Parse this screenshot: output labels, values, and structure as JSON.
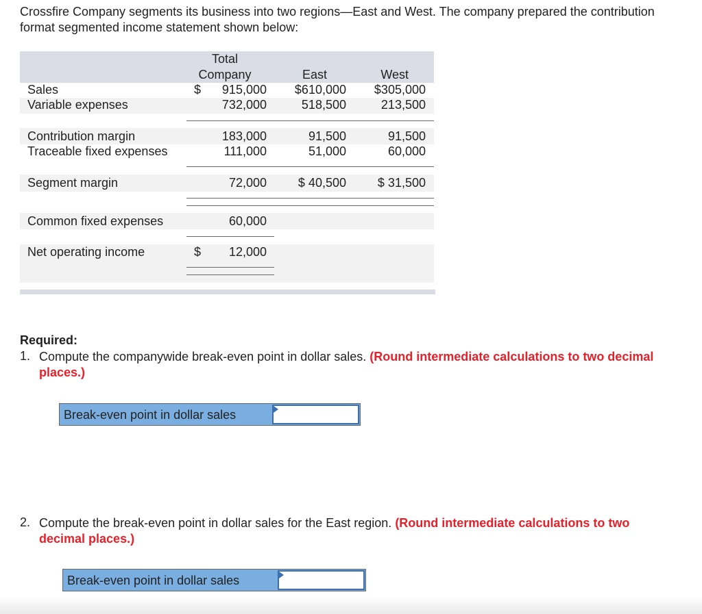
{
  "intro": "Crossfire Company segments its business into two regions—East and West. The company prepared the contribution format segmented income statement shown below:",
  "table": {
    "headers": {
      "total_line1": "Total",
      "total_line2": "Company",
      "east": "East",
      "west": "West"
    },
    "rows": [
      {
        "label": "Sales",
        "total_sign": "$",
        "total": "915,000",
        "east": "$610,000",
        "west": "$305,000"
      },
      {
        "label": "Variable expenses",
        "total": "732,000",
        "east": "518,500",
        "west": "213,500"
      },
      {
        "label": "Contribution margin",
        "total": "183,000",
        "east": "91,500",
        "west": "91,500"
      },
      {
        "label": "Traceable fixed expenses",
        "total": "111,000",
        "east": "51,000",
        "west": "60,000"
      },
      {
        "label": "Segment margin",
        "total": "72,000",
        "east": "$ 40,500",
        "west": "$ 31,500"
      },
      {
        "label": "Common fixed expenses",
        "total": "60,000"
      },
      {
        "label": "Net operating income",
        "total_sign": "$",
        "total": "12,000"
      }
    ]
  },
  "required": {
    "heading": "Required:",
    "q1": {
      "num": "1.",
      "text": "Compute the companywide break-even point in dollar sales.",
      "note": "(Round intermediate calculations to two decimal places.)",
      "field_label": "Break-even point in dollar sales",
      "value": ""
    },
    "q2": {
      "num": "2.",
      "text": "Compute the break-even point in dollar sales for the East region.",
      "note": "(Round intermediate calculations to two decimal places.)",
      "field_label": "Break-even point in dollar sales",
      "value": ""
    }
  },
  "colors": {
    "header_bg": "#dadde6",
    "label_bg": "#7aaee0",
    "note": "#e8202a"
  }
}
